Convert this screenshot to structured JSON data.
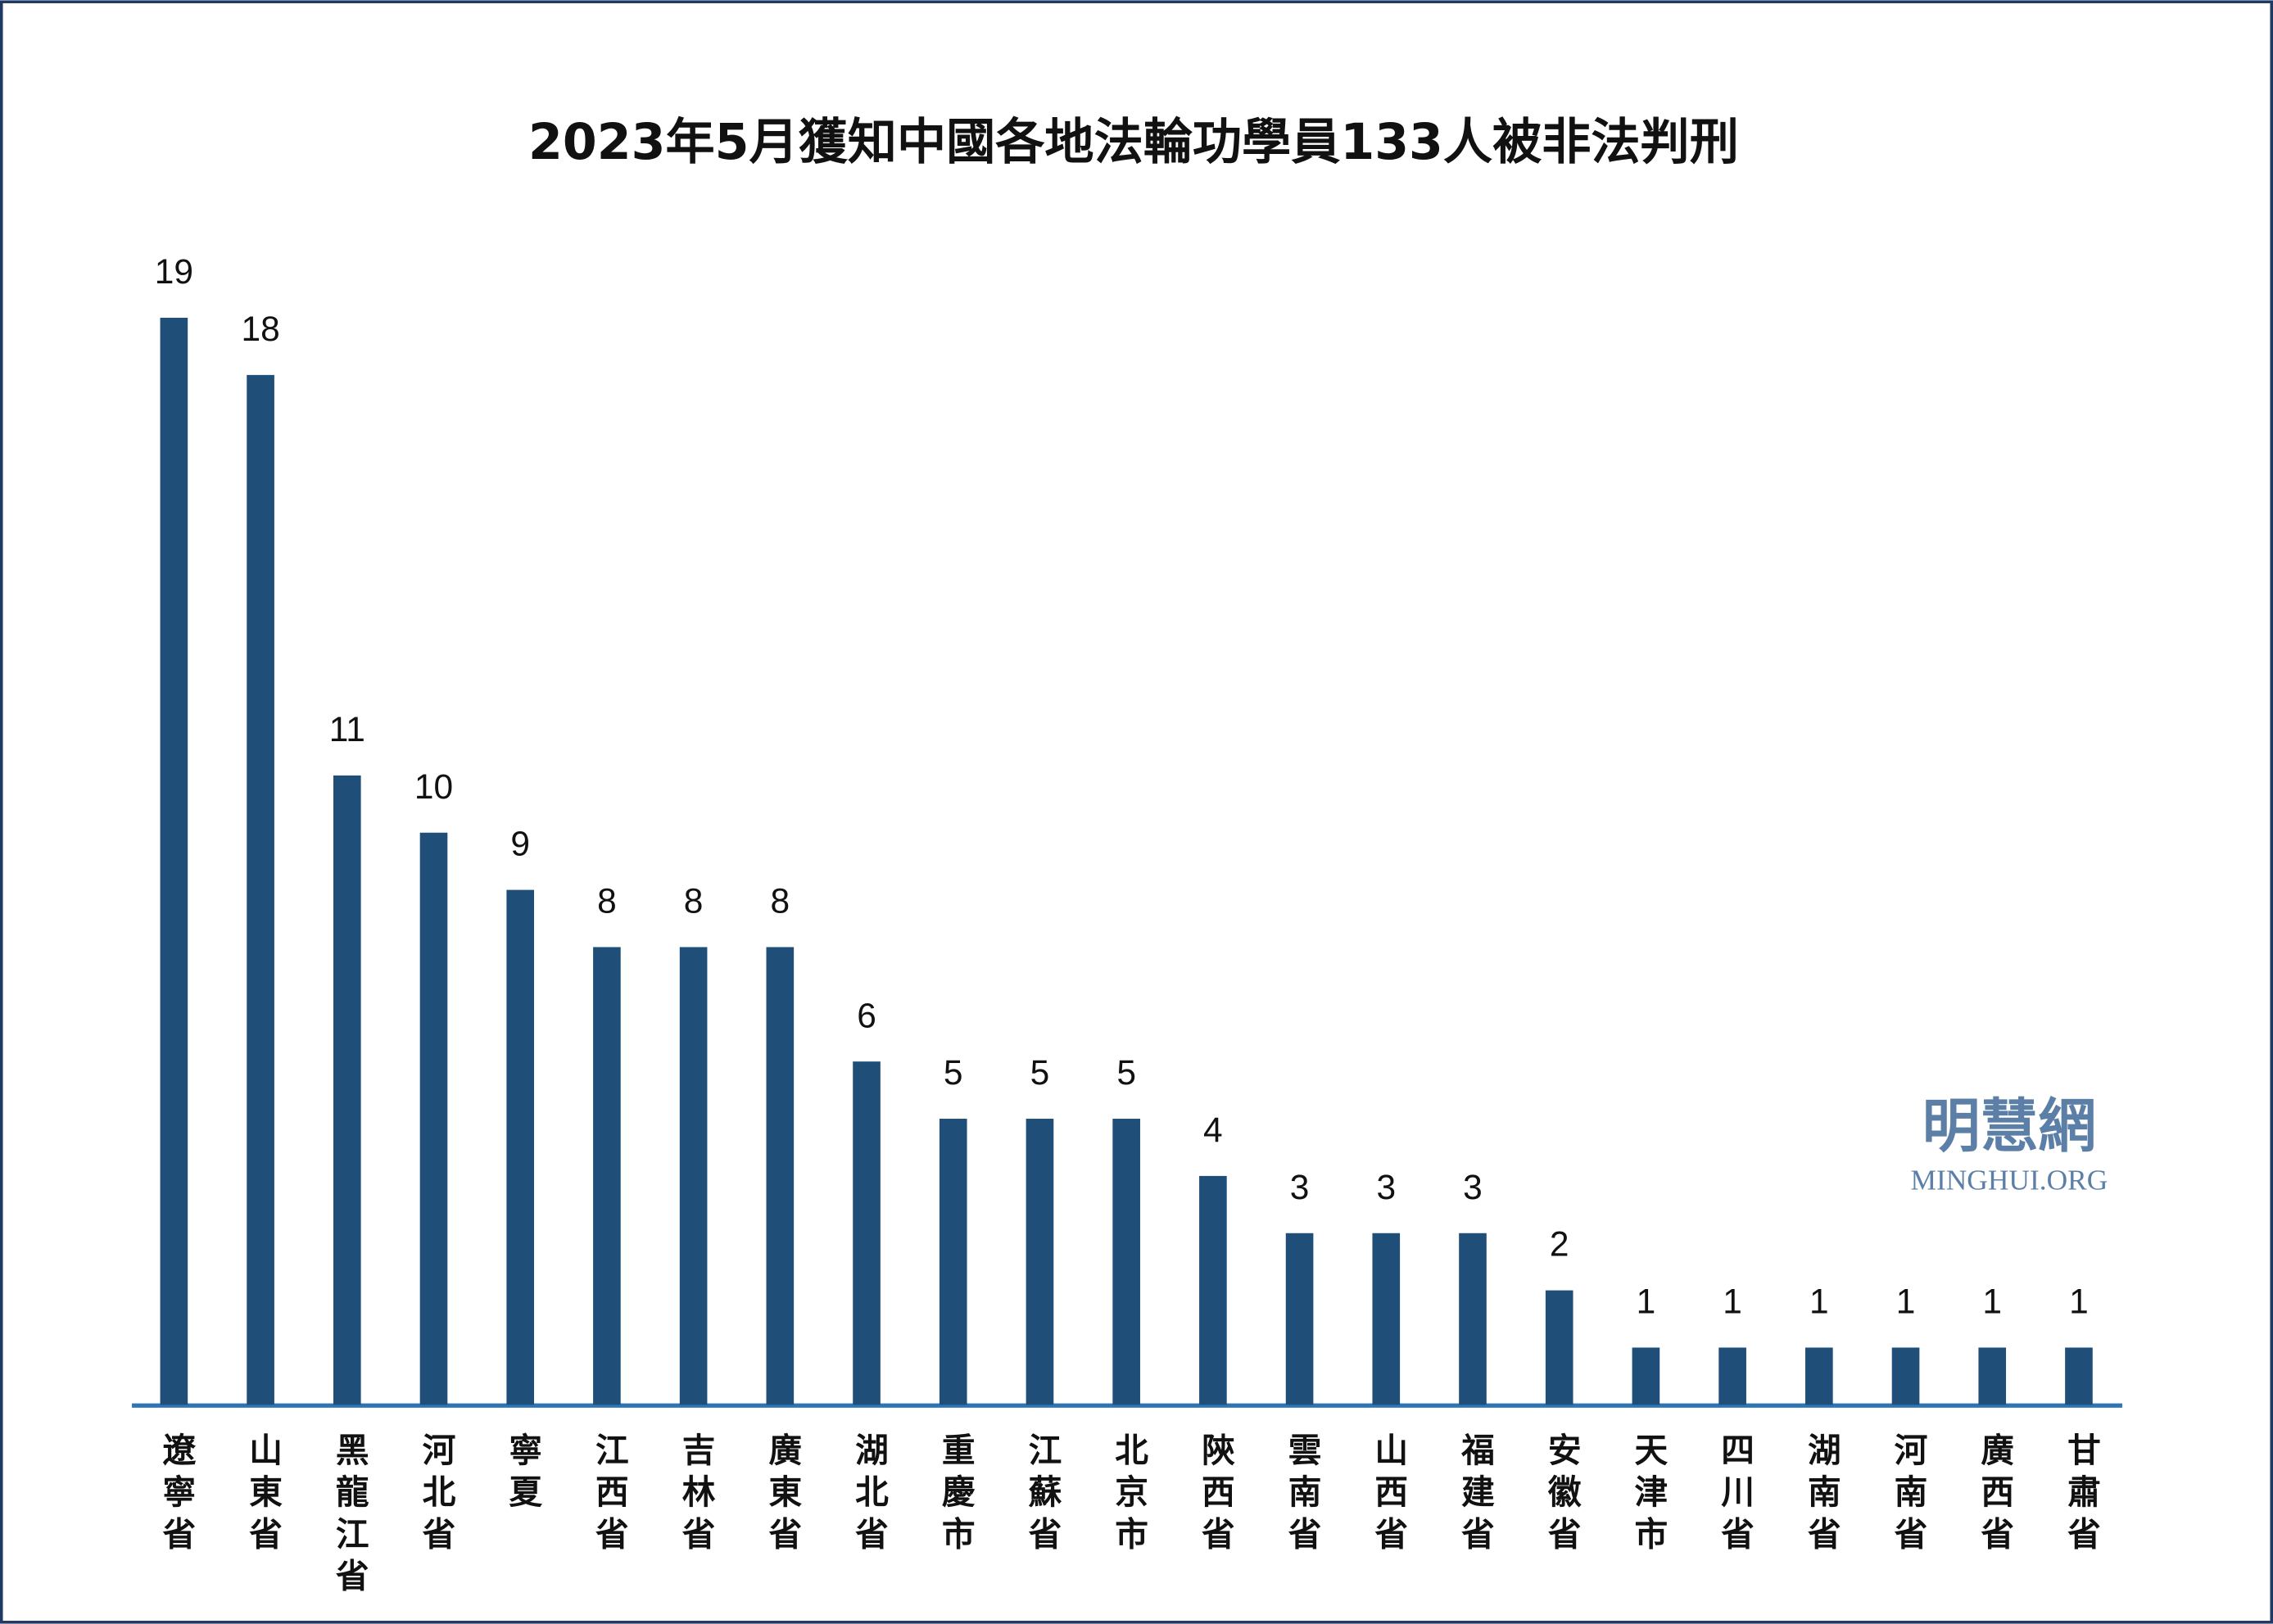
{
  "chart_data": {
    "type": "bar",
    "title": "2023年5月獲知中國各地法輪功學員133人被非法判刑",
    "categories": [
      "遼寧省",
      "山東省",
      "黑龍江省",
      "河北省",
      "寧夏",
      "江西省",
      "吉林省",
      "廣東省",
      "湖北省",
      "重慶市",
      "江蘇省",
      "北京市",
      "陝西省",
      "雲南省",
      "山西省",
      "福建省",
      "安徽省",
      "天津市",
      "四川省",
      "湖南省",
      "河南省",
      "廣西省",
      "甘肅省"
    ],
    "values": [
      19,
      18,
      11,
      10,
      9,
      8,
      8,
      8,
      6,
      5,
      5,
      5,
      4,
      3,
      3,
      3,
      2,
      1,
      1,
      1,
      1,
      1,
      1
    ],
    "color": "#1f4e79",
    "watermark": {
      "name": "明慧網",
      "site": "MINGHUI.ORG"
    }
  }
}
